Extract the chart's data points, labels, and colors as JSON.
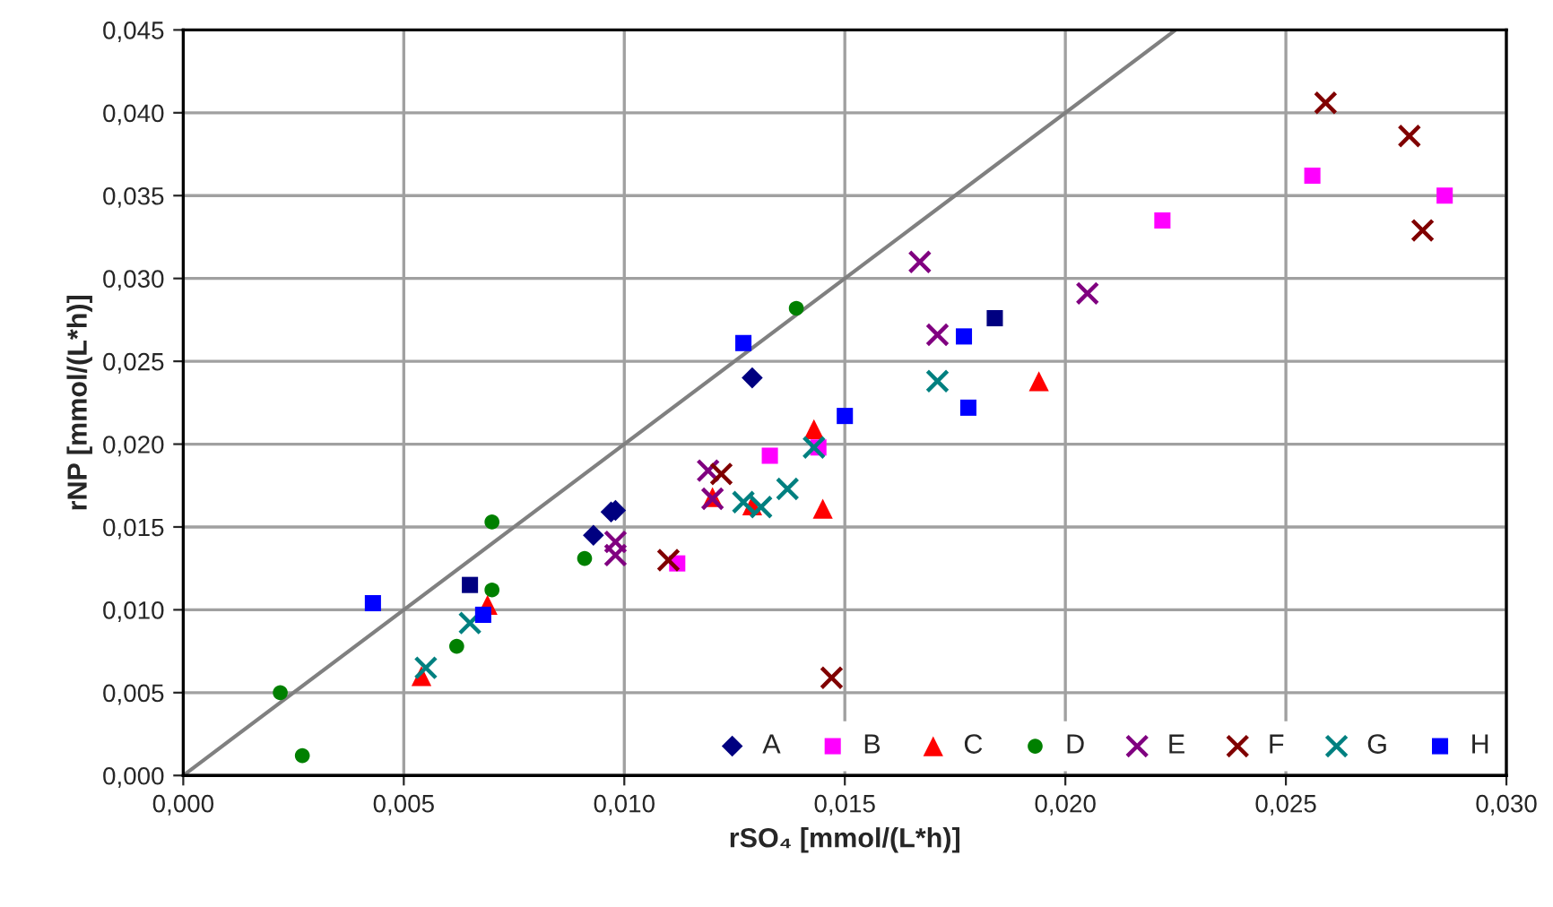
{
  "chart_data": {
    "type": "scatter",
    "xlabel": "rSO₄ [mmol/(L*h)]",
    "ylabel": "rNP [mmol/(L*h)]",
    "xlim": [
      0,
      0.03
    ],
    "ylim": [
      0,
      0.045
    ],
    "xticks": [
      {
        "value": 0,
        "label": "0,000"
      },
      {
        "value": 0.005,
        "label": "0,005"
      },
      {
        "value": 0.01,
        "label": "0,010"
      },
      {
        "value": 0.015,
        "label": "0,015"
      },
      {
        "value": 0.02,
        "label": "0,020"
      },
      {
        "value": 0.025,
        "label": "0,025"
      },
      {
        "value": 0.03,
        "label": "0,030"
      }
    ],
    "yticks": [
      {
        "value": 0,
        "label": "0,000"
      },
      {
        "value": 0.005,
        "label": "0,005"
      },
      {
        "value": 0.01,
        "label": "0,010"
      },
      {
        "value": 0.015,
        "label": "0,015"
      },
      {
        "value": 0.02,
        "label": "0,020"
      },
      {
        "value": 0.025,
        "label": "0,025"
      },
      {
        "value": 0.03,
        "label": "0,030"
      },
      {
        "value": 0.035,
        "label": "0,035"
      },
      {
        "value": 0.04,
        "label": "0,040"
      },
      {
        "value": 0.045,
        "label": "0,045"
      }
    ],
    "grid": true,
    "legend": "bottom right",
    "series": [
      {
        "type": "line",
        "color": "#808080",
        "marker": "none",
        "x": [
          0,
          0.0225
        ],
        "values": [
          0,
          0.045
        ]
      },
      {
        "name": "A",
        "color": "#000080",
        "marker": "diamond",
        "x": [
          0.0093,
          0.0097,
          0.0098,
          0.0129
        ],
        "values": [
          0.0145,
          0.0159,
          0.016,
          0.024
        ]
      },
      {
        "name": "B",
        "color": "#ff00ff",
        "marker": "square",
        "x": [
          0.0112,
          0.0133,
          0.0144,
          0.0222,
          0.0256,
          0.0286
        ],
        "values": [
          0.0128,
          0.0193,
          0.0198,
          0.0335,
          0.0362,
          0.035
        ]
      },
      {
        "name": "C",
        "color": "#ff0000",
        "marker": "triangle",
        "x": [
          0.0054,
          0.0069,
          0.012,
          0.0129,
          0.0143,
          0.0145,
          0.0194
        ],
        "values": [
          0.006,
          0.0103,
          0.0168,
          0.0163,
          0.0209,
          0.0161,
          0.0238
        ]
      },
      {
        "name": "D",
        "color": "#008000",
        "marker": "circle",
        "x": [
          0.0022,
          0.0027,
          0.0062,
          0.007,
          0.007,
          0.0091,
          0.0139
        ],
        "values": [
          0.005,
          0.0012,
          0.0078,
          0.0112,
          0.0153,
          0.0131,
          0.0282
        ]
      },
      {
        "name": "E",
        "color": "#800080",
        "marker": "cross",
        "x": [
          0.0098,
          0.0098,
          0.0119,
          0.012,
          0.0167,
          0.0171,
          0.0205
        ],
        "values": [
          0.0141,
          0.0133,
          0.0184,
          0.0167,
          0.031,
          0.0266,
          0.0291
        ]
      },
      {
        "name": "F",
        "color": "#800000",
        "marker": "cross",
        "x": [
          0.011,
          0.0122,
          0.0147,
          0.0259,
          0.0278,
          0.0281
        ],
        "values": [
          0.013,
          0.0182,
          0.0059,
          0.0406,
          0.0386,
          0.0329
        ]
      },
      {
        "name": "G",
        "color": "#008080",
        "marker": "cross",
        "x": [
          0.0055,
          0.0065,
          0.0127,
          0.0131,
          0.0137,
          0.0143,
          0.0171
        ],
        "values": [
          0.0065,
          0.0092,
          0.0165,
          0.0162,
          0.0173,
          0.0198,
          0.0238
        ]
      },
      {
        "name": "H",
        "color": "#0000ff",
        "marker": "square",
        "x": [
          0.0043,
          0.0068,
          0.0127,
          0.015,
          0.0177,
          0.0178
        ],
        "values": [
          0.0104,
          0.0097,
          0.0261,
          0.0217,
          0.0265,
          0.0222
        ]
      },
      {
        "color": "#000080",
        "marker": "square",
        "x": [
          0.0065,
          0.0184
        ],
        "values": [
          0.0115,
          0.0276
        ]
      }
    ]
  }
}
